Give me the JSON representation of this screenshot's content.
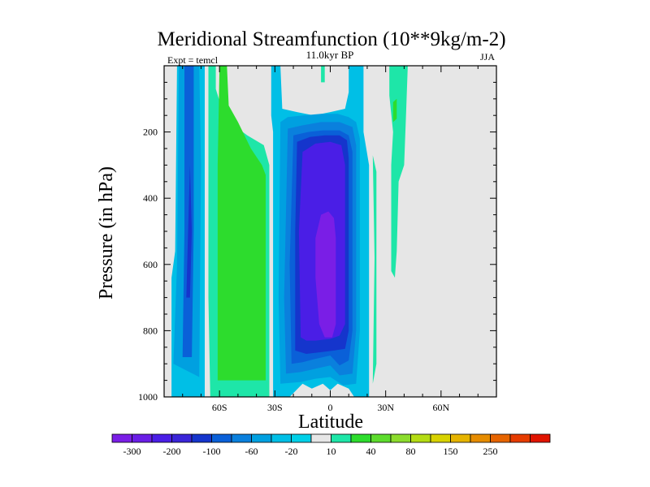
{
  "chart_data": {
    "type": "heatmap",
    "title": "Meridional Streamfunction (10**9kg/m-2)",
    "subtitle_left": "Expt = temcl",
    "subtitle_center": "11.0kyr BP",
    "subtitle_right": "JJA",
    "xlabel": "Latitude",
    "ylabel": "Pressure (in hPa)",
    "xlim": [
      -90,
      90
    ],
    "ylim": [
      1000,
      0
    ],
    "x_ticks": [
      {
        "value": -60,
        "label": "60S"
      },
      {
        "value": -30,
        "label": "30S"
      },
      {
        "value": 0,
        "label": "0"
      },
      {
        "value": 30,
        "label": "30N"
      },
      {
        "value": 60,
        "label": "60N"
      }
    ],
    "y_ticks": [
      {
        "value": 200,
        "label": "200"
      },
      {
        "value": 400,
        "label": "400"
      },
      {
        "value": 600,
        "label": "600"
      },
      {
        "value": 800,
        "label": "800"
      },
      {
        "value": 1000,
        "label": "1000"
      }
    ],
    "background_color": "#e6e6e6",
    "regions": [
      {
        "name": "southern-polar-cell-light",
        "level": "-20",
        "color": "#00bfe6",
        "points": [
          [
            -86,
            1000
          ],
          [
            -86,
            640
          ],
          [
            -84,
            560
          ],
          [
            -83,
            0
          ],
          [
            -68,
            0
          ],
          [
            -68,
            1000
          ]
        ]
      },
      {
        "name": "southern-polar-cell-medium",
        "level": "-40",
        "color": "#00a0e0",
        "points": [
          [
            -85,
            900
          ],
          [
            -83,
            600
          ],
          [
            -82,
            0
          ],
          [
            -71,
            0
          ],
          [
            -70,
            300
          ],
          [
            -71,
            940
          ]
        ]
      },
      {
        "name": "southern-polar-cell-core",
        "level": "-80",
        "color": "#0a60d8",
        "points": [
          [
            -80,
            880
          ],
          [
            -79,
            500
          ],
          [
            -79,
            0
          ],
          [
            -74,
            0
          ],
          [
            -74,
            500
          ],
          [
            -75,
            880
          ]
        ]
      },
      {
        "name": "southern-polar-cell-inner",
        "level": "-100",
        "color": "#1535cc",
        "points": [
          [
            -78,
            700
          ],
          [
            -77,
            500
          ],
          [
            -76,
            300
          ],
          [
            -75,
            500
          ],
          [
            -76,
            700
          ]
        ]
      },
      {
        "name": "southern-ferrel-cell-outer",
        "level": "10",
        "color": "#1ee6a8",
        "points": [
          [
            -65,
            1000
          ],
          [
            -66,
            700
          ],
          [
            -66,
            0
          ],
          [
            -62,
            0
          ],
          [
            -62,
            70
          ],
          [
            -57,
            160
          ],
          [
            -45,
            210
          ],
          [
            -36,
            240
          ],
          [
            -33,
            300
          ],
          [
            -33,
            1000
          ]
        ]
      },
      {
        "name": "southern-ferrel-cell-core",
        "level": "40",
        "color": "#2ddc2d",
        "points": [
          [
            -61,
            950
          ],
          [
            -61,
            300
          ],
          [
            -60,
            0
          ],
          [
            -56,
            0
          ],
          [
            -55,
            120
          ],
          [
            -50,
            170
          ],
          [
            -43,
            250
          ],
          [
            -37,
            300
          ],
          [
            -35,
            330
          ],
          [
            -35,
            950
          ]
        ]
      },
      {
        "name": "hadley-cell-l1",
        "level": "-20",
        "color": "#00bfe6",
        "points": [
          [
            -31,
            1000
          ],
          [
            -31,
            200
          ],
          [
            -32,
            150
          ],
          [
            -32,
            0
          ],
          [
            -27,
            0
          ],
          [
            -26,
            130
          ],
          [
            -18,
            140
          ],
          [
            -9,
            150
          ],
          [
            0,
            140
          ],
          [
            8,
            130
          ],
          [
            10,
            80
          ],
          [
            10,
            0
          ],
          [
            18,
            0
          ],
          [
            18,
            200
          ],
          [
            21,
            300
          ],
          [
            21,
            1000
          ],
          [
            13,
            1000
          ],
          [
            10,
            975
          ],
          [
            4,
            960
          ],
          [
            0,
            980
          ],
          [
            -4,
            960
          ],
          [
            -10,
            975
          ],
          [
            -15,
            960
          ],
          [
            -22,
            1000
          ]
        ]
      },
      {
        "name": "hadley-cell-l2",
        "level": "-40",
        "color": "#00a0e0",
        "points": [
          [
            -27,
            960
          ],
          [
            -28,
            700
          ],
          [
            -27,
            170
          ],
          [
            -23,
            155
          ],
          [
            -15,
            150
          ],
          [
            -5,
            145
          ],
          [
            4,
            145
          ],
          [
            10,
            155
          ],
          [
            14,
            170
          ],
          [
            16,
            220
          ],
          [
            16,
            800
          ],
          [
            14,
            960
          ],
          [
            7,
            965
          ],
          [
            0,
            940
          ],
          [
            -8,
            945
          ],
          [
            -16,
            955
          ]
        ]
      },
      {
        "name": "hadley-cell-l3",
        "level": "-60",
        "color": "#0a80dd",
        "points": [
          [
            -24,
            930
          ],
          [
            -25,
            700
          ],
          [
            -23,
            190
          ],
          [
            -15,
            180
          ],
          [
            -5,
            170
          ],
          [
            5,
            170
          ],
          [
            12,
            185
          ],
          [
            14,
            240
          ],
          [
            14,
            800
          ],
          [
            12,
            930
          ],
          [
            5,
            935
          ],
          [
            0,
            905
          ],
          [
            -8,
            915
          ],
          [
            -16,
            925
          ]
        ]
      },
      {
        "name": "hadley-cell-l4",
        "level": "-80",
        "color": "#0a60d8",
        "points": [
          [
            -21,
            900
          ],
          [
            -22,
            600
          ],
          [
            -20,
            210
          ],
          [
            -12,
            200
          ],
          [
            -4,
            195
          ],
          [
            5,
            195
          ],
          [
            10,
            210
          ],
          [
            12,
            260
          ],
          [
            12,
            800
          ],
          [
            10,
            890
          ],
          [
            5,
            905
          ],
          [
            0,
            875
          ],
          [
            -8,
            885
          ],
          [
            -15,
            895
          ]
        ]
      },
      {
        "name": "hadley-cell-l5",
        "level": "-100",
        "color": "#1535cc",
        "points": [
          [
            -19,
            860
          ],
          [
            -19,
            500
          ],
          [
            -18,
            230
          ],
          [
            -11,
            215
          ],
          [
            -3,
            210
          ],
          [
            5,
            210
          ],
          [
            9,
            225
          ],
          [
            10,
            280
          ],
          [
            10,
            800
          ],
          [
            8,
            855
          ],
          [
            2,
            860
          ],
          [
            -5,
            865
          ],
          [
            -13,
            870
          ]
        ]
      },
      {
        "name": "hadley-cell-l6",
        "level": "-200",
        "color": "#4a1ee6",
        "points": [
          [
            -16,
            820
          ],
          [
            -17,
            500
          ],
          [
            -15,
            260
          ],
          [
            -8,
            235
          ],
          [
            0,
            230
          ],
          [
            6,
            240
          ],
          [
            8,
            300
          ],
          [
            8,
            780
          ],
          [
            5,
            815
          ],
          [
            0,
            825
          ],
          [
            -8,
            830
          ],
          [
            -13,
            830
          ]
        ]
      },
      {
        "name": "hadley-cell-core",
        "level": "-300",
        "color": "#7a1ee6",
        "points": [
          [
            -8,
            640
          ],
          [
            -8,
            520
          ],
          [
            -5,
            450
          ],
          [
            -1,
            440
          ],
          [
            2,
            460
          ],
          [
            3,
            520
          ],
          [
            3,
            780
          ],
          [
            1,
            820
          ],
          [
            -3,
            820
          ],
          [
            -6,
            780
          ]
        ]
      },
      {
        "name": "northern-cell-patch",
        "level": "10",
        "color": "#1ee6a8",
        "points": [
          [
            23,
            960
          ],
          [
            24,
            580
          ],
          [
            23,
            270
          ],
          [
            25,
            320
          ],
          [
            25,
            900
          ]
        ]
      },
      {
        "name": "northern-cell-patch-2",
        "level": "10",
        "color": "#1ee6a8",
        "points": [
          [
            32,
            0
          ],
          [
            42,
            0
          ],
          [
            41,
            150
          ],
          [
            40,
            300
          ],
          [
            37,
            350
          ],
          [
            36,
            560
          ],
          [
            35,
            640
          ],
          [
            33,
            620
          ],
          [
            33,
            300
          ],
          [
            34,
            200
          ],
          [
            32,
            90
          ]
        ]
      },
      {
        "name": "northern-cell-core",
        "level": "40",
        "color": "#2ddc2d",
        "points": [
          [
            34,
            110
          ],
          [
            36,
            100
          ],
          [
            36,
            160
          ],
          [
            34,
            170
          ]
        ]
      },
      {
        "name": "equatorial-upper-patch",
        "level": "10",
        "color": "#1ee6a8",
        "points": [
          [
            -5,
            0
          ],
          [
            -3,
            0
          ],
          [
            -3,
            50
          ],
          [
            -5,
            50
          ]
        ]
      }
    ],
    "colorbar": {
      "segments": [
        "#7a1ee6",
        "#6a1ee6",
        "#4a1ee6",
        "#3a25d8",
        "#1535cc",
        "#0a60d8",
        "#0a80dd",
        "#00a0e0",
        "#00bfe6",
        "#00d0e8",
        "#e6e6e6",
        "#1ee6a8",
        "#2ddc2d",
        "#5ddc2d",
        "#8cdc2d",
        "#b4dc14",
        "#d8d200",
        "#e6b400",
        "#e68c00",
        "#e66400",
        "#e63c00",
        "#e01400"
      ],
      "labels": [
        "-300",
        "-200",
        "-100",
        "-60",
        "-20",
        "10",
        "40",
        "80",
        "150",
        "250"
      ]
    }
  }
}
